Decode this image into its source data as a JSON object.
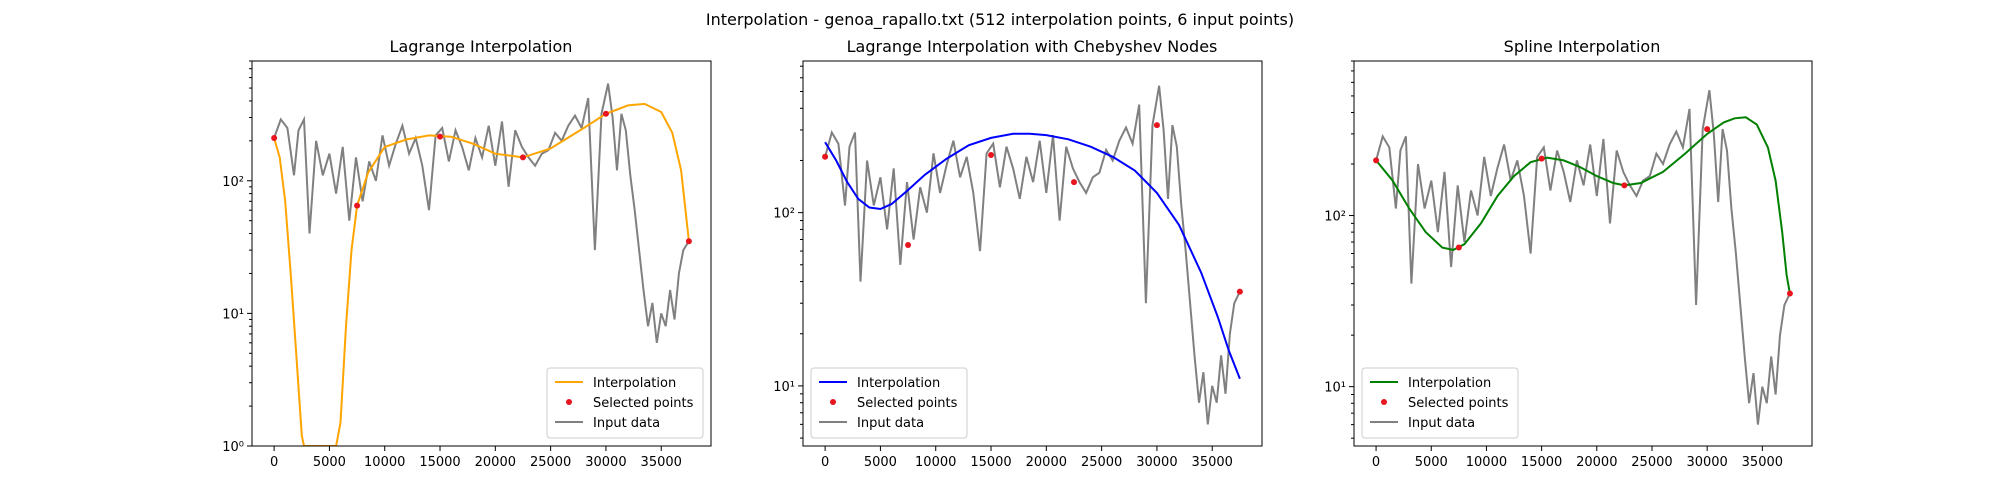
{
  "figure": {
    "title": "Interpolation - genoa_rapallo.txt (512 interpolation points, 6 input points)"
  },
  "colors": {
    "input": "#808080",
    "selected": "#e8141e",
    "lagrange": "#ffa500",
    "chebyshev": "#0000ff",
    "spline": "#008000"
  },
  "legend_labels": {
    "interpolation": "Interpolation",
    "selected": "Selected points",
    "input": "Input data"
  },
  "input_data": {
    "x": [
      0,
      600,
      1200,
      1800,
      2200,
      2700,
      3200,
      3800,
      4400,
      5000,
      5600,
      6200,
      6800,
      7400,
      8000,
      8600,
      9200,
      9800,
      10400,
      11000,
      11600,
      12200,
      12800,
      13400,
      14000,
      14600,
      15200,
      15800,
      16400,
      17000,
      17600,
      18200,
      18800,
      19400,
      20000,
      20600,
      21200,
      21800,
      22400,
      23000,
      23600,
      24200,
      24800,
      25400,
      26000,
      26600,
      27200,
      27800,
      28400,
      29000,
      29600,
      30200,
      30600,
      31000,
      31400,
      31800,
      32200,
      32600,
      33000,
      33400,
      33800,
      34200,
      34600,
      35000,
      35400,
      35800,
      36200,
      36600,
      37000,
      37500
    ],
    "y": [
      210,
      290,
      250,
      110,
      240,
      290,
      40,
      200,
      110,
      160,
      80,
      180,
      50,
      150,
      70,
      140,
      100,
      220,
      130,
      190,
      260,
      160,
      210,
      130,
      60,
      220,
      250,
      140,
      240,
      180,
      120,
      210,
      150,
      260,
      130,
      280,
      90,
      240,
      180,
      150,
      130,
      160,
      170,
      230,
      200,
      260,
      310,
      250,
      420,
      30,
      320,
      540,
      300,
      120,
      320,
      240,
      110,
      60,
      30,
      15,
      8,
      12,
      6,
      10,
      8,
      15,
      9,
      20,
      30,
      35
    ]
  },
  "selected_points": {
    "x": [
      0,
      7500,
      15000,
      22500,
      30000,
      37500
    ],
    "y": [
      210,
      65,
      215,
      150,
      320,
      35
    ]
  },
  "chart_data": [
    {
      "type": "line",
      "title": "Lagrange Interpolation",
      "xlim": [
        -2000,
        39500
      ],
      "ylim": [
        1,
        800
      ],
      "yscale": "log",
      "x_ticks": [
        0,
        5000,
        10000,
        15000,
        20000,
        25000,
        30000,
        35000
      ],
      "x_tick_labels": [
        "0",
        "5000",
        "10000",
        "15000",
        "20000",
        "25000",
        "30000",
        "35000"
      ],
      "y_ticks": [
        1,
        10,
        100
      ],
      "y_tick_labels": [
        "10⁰",
        "10¹",
        "10²"
      ],
      "legend": "lower-right",
      "series": [
        {
          "name": "Interpolation",
          "values_x": [
            0,
            500,
            1000,
            1500,
            2000,
            2500,
            2700,
            5600,
            6000,
            6500,
            7000,
            7500,
            8500,
            10000,
            12000,
            14000,
            16000,
            18000,
            20000,
            22500,
            25000,
            28000,
            30000,
            32000,
            33500,
            35000,
            36000,
            36800,
            37500
          ],
          "values_y": [
            210,
            150,
            70,
            20,
            5,
            1.2,
            0.5,
            0.5,
            1.5,
            8,
            30,
            65,
            115,
            180,
            205,
            220,
            215,
            190,
            160,
            150,
            175,
            250,
            320,
            370,
            380,
            330,
            230,
            120,
            35
          ]
        }
      ]
    },
    {
      "type": "line",
      "title": "Lagrange Interpolation with Chebyshev Nodes",
      "xlim": [
        -2000,
        39500
      ],
      "ylim": [
        4.5,
        750
      ],
      "yscale": "log",
      "x_ticks": [
        0,
        5000,
        10000,
        15000,
        20000,
        25000,
        30000,
        35000
      ],
      "x_tick_labels": [
        "0",
        "5000",
        "10000",
        "15000",
        "20000",
        "25000",
        "30000",
        "35000"
      ],
      "y_ticks": [
        10,
        100
      ],
      "y_tick_labels": [
        "10¹",
        "10²"
      ],
      "legend": "lower-left",
      "series": [
        {
          "name": "Interpolation",
          "values_x": [
            0,
            1000,
            2000,
            3000,
            4000,
            5000,
            6000,
            7500,
            9000,
            11000,
            13000,
            15000,
            17000,
            18500,
            20000,
            22000,
            24000,
            26000,
            28000,
            30000,
            32000,
            34000,
            35500,
            36500,
            37500
          ],
          "values_y": [
            255,
            200,
            150,
            120,
            107,
            105,
            112,
            135,
            165,
            205,
            245,
            270,
            285,
            285,
            280,
            265,
            240,
            210,
            175,
            130,
            85,
            45,
            25,
            16,
            11
          ]
        }
      ]
    },
    {
      "type": "line",
      "title": "Spline Interpolation",
      "xlim": [
        -2000,
        39500
      ],
      "ylim": [
        4.5,
        800
      ],
      "yscale": "log",
      "x_ticks": [
        0,
        5000,
        10000,
        15000,
        20000,
        25000,
        30000,
        35000
      ],
      "x_tick_labels": [
        "0",
        "5000",
        "10000",
        "15000",
        "20000",
        "25000",
        "30000",
        "35000"
      ],
      "y_ticks": [
        10,
        100
      ],
      "y_tick_labels": [
        "10¹",
        "10²"
      ],
      "legend": "lower-left",
      "series": [
        {
          "name": "Interpolation",
          "values_x": [
            0,
            1500,
            3000,
            4500,
            6000,
            7000,
            8000,
            9500,
            11000,
            12500,
            14000,
            15500,
            17000,
            18500,
            20000,
            21500,
            22500,
            24000,
            26000,
            28000,
            30000,
            31500,
            32500,
            33500,
            34500,
            35500,
            36200,
            36800,
            37200,
            37500
          ],
          "values_y": [
            210,
            160,
            110,
            80,
            65,
            63,
            68,
            90,
            130,
            170,
            205,
            218,
            210,
            192,
            170,
            155,
            150,
            155,
            180,
            230,
            300,
            350,
            370,
            375,
            340,
            250,
            160,
            80,
            45,
            35
          ]
        }
      ]
    }
  ]
}
